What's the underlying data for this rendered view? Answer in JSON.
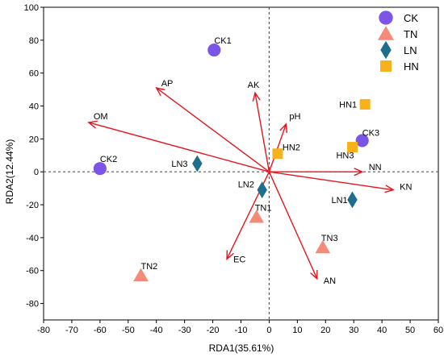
{
  "chart_data": {
    "type": "scatter",
    "title": "",
    "xlabel": "RDA1(35.61%)",
    "ylabel": "RDA2(12.44%)",
    "xlim": [
      -80,
      60
    ],
    "ylim": [
      -90,
      100
    ],
    "xticks": [
      -80,
      -70,
      -60,
      -50,
      -40,
      -30,
      -20,
      -10,
      0,
      10,
      20,
      30,
      40,
      50,
      60
    ],
    "yticks": [
      -80,
      -60,
      -40,
      -20,
      0,
      20,
      40,
      60,
      80,
      100
    ],
    "grid": false,
    "zero_lines": "dashed",
    "legend_position": "top-right",
    "series": [
      {
        "name": "CK",
        "marker": "circle",
        "color": "#7b55e8",
        "points": [
          {
            "label": "CK1",
            "x": -19.5,
            "y": 74
          },
          {
            "label": "CK2",
            "x": -60,
            "y": 2
          },
          {
            "label": "CK3",
            "x": 33,
            "y": 19
          }
        ]
      },
      {
        "name": "TN",
        "marker": "triangle",
        "color": "#f58a78",
        "points": [
          {
            "label": "TN1",
            "x": -4.5,
            "y": -27.5
          },
          {
            "label": "TN2",
            "x": -45.5,
            "y": -63
          },
          {
            "label": "TN3",
            "x": 19,
            "y": -46
          }
        ]
      },
      {
        "name": "LN",
        "marker": "diamond",
        "color": "#1f6e8c",
        "points": [
          {
            "label": "LN1",
            "x": 29.5,
            "y": -17
          },
          {
            "label": "LN2",
            "x": -2.5,
            "y": -11
          },
          {
            "label": "LN3",
            "x": -25.5,
            "y": 5
          }
        ]
      },
      {
        "name": "HN",
        "marker": "square",
        "color": "#f7b21b",
        "points": [
          {
            "label": "HN1",
            "x": 34,
            "y": 41
          },
          {
            "label": "HN2",
            "x": 3,
            "y": 11
          },
          {
            "label": "HN3",
            "x": 29.5,
            "y": 15
          }
        ]
      }
    ],
    "arrows": {
      "color": "#e8141d",
      "items": [
        {
          "label": "AP",
          "x": -40,
          "y": 51
        },
        {
          "label": "AK",
          "x": -5,
          "y": 48
        },
        {
          "label": "OM",
          "x": -64,
          "y": 30
        },
        {
          "label": "pH",
          "x": 6,
          "y": 29
        },
        {
          "label": "NN",
          "x": 33,
          "y": 0
        },
        {
          "label": "KN",
          "x": 44,
          "y": -11
        },
        {
          "label": "EC",
          "x": -15,
          "y": -53
        },
        {
          "label": "AN",
          "x": 17,
          "y": -65
        }
      ]
    }
  }
}
